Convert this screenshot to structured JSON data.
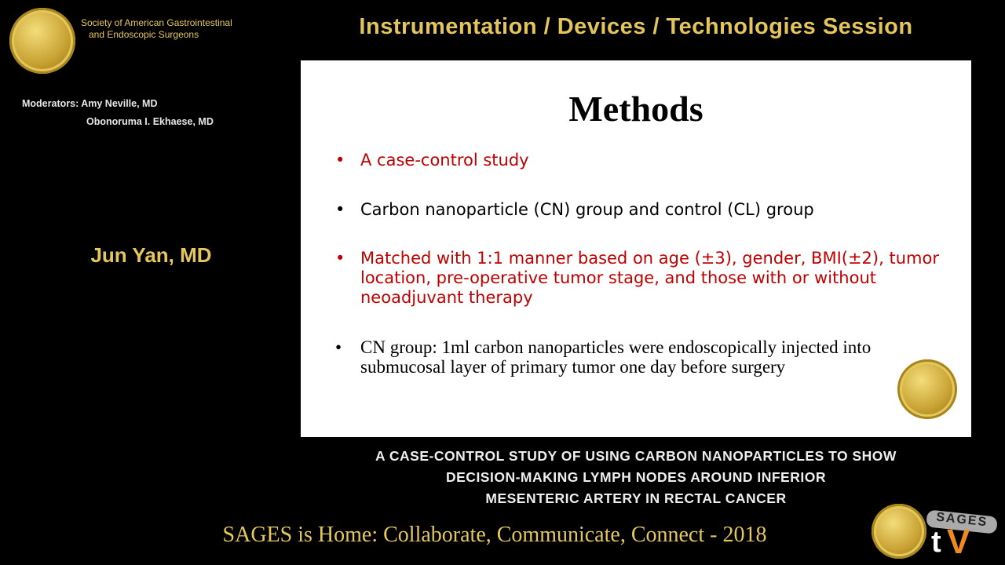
{
  "header": {
    "org_line1": "Society of American Gastrointestinal",
    "org_line2": "and Endoscopic Surgeons",
    "session": "Instrumentation / Devices / Technologies Session"
  },
  "moderators": {
    "line1": "Moderators: Amy Neville, MD",
    "line2": "Obonoruma I. Ekhaese, MD"
  },
  "speaker": "Jun Yan, MD",
  "slide": {
    "title": "Methods",
    "bullets": [
      {
        "text": "A case-control study",
        "color": "#c00000"
      },
      {
        "text": "Carbon nanoparticle (CN) group and control (CL) group",
        "color": "#000000"
      },
      {
        "text": "Matched with 1:1 manner based on age (±3), gender, BMI(±2), tumor location, pre-operative tumor stage, and those with or without neoadjuvant therapy",
        "color": "#c00000"
      },
      {
        "text": "CN group: 1ml carbon nanoparticles were endoscopically injected into submucosal layer of primary tumor one day before surgery",
        "color": "#000000"
      }
    ]
  },
  "caption": {
    "line1": "A CASE-CONTROL STUDY OF USING CARBON NANOPARTICLES TO SHOW",
    "line2": "DECISION-MAKING LYMPH NODES AROUND INFERIOR",
    "line3": "MESENTERIC ARTERY IN RECTAL CANCER"
  },
  "footer": "SAGES is Home: Collaborate, Communicate, Connect - 2018",
  "logos": {
    "seal": "SAGES",
    "tv": "SAGES tV"
  },
  "colors": {
    "gold": "#e6c75c",
    "accent_red": "#c00000",
    "tv_orange": "#f08a1c"
  }
}
